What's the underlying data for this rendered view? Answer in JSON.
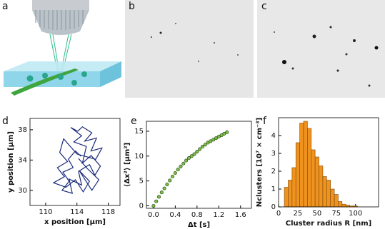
{
  "panel_labels": [
    "a",
    "b",
    "c",
    "d",
    "e",
    "f"
  ],
  "chart_data": [
    {
      "type": "line",
      "xlabel": "x position [μm]",
      "ylabel": "y position [μm]",
      "color": "#1a2a7a",
      "x": [
        114.5,
        113.8,
        112.9,
        113.5,
        112.2,
        113.0,
        112.1,
        113.4,
        113.0,
        114.6,
        114.2,
        115.6,
        116.3,
        117.0,
        115.8,
        114.7,
        115.2,
        113.6,
        114.6,
        113.2,
        114.1,
        114.7,
        115.9,
        115.0,
        116.5,
        115.8,
        117.2,
        116.4,
        114.0,
        112.3,
        111.8,
        112.8,
        111.5,
        112.4,
        111.0,
        112.6,
        113.8,
        114.8,
        115.6,
        114.3,
        115.9,
        116.8,
        115.3,
        114.2
      ],
      "values": [
        34.5,
        35.2,
        34.1,
        33.0,
        32.4,
        31.2,
        30.0,
        29.6,
        31.5,
        30.7,
        32.5,
        33.4,
        32.0,
        33.2,
        34.6,
        33.6,
        35.8,
        36.4,
        37.2,
        38.3,
        37.8,
        38.4,
        37.6,
        36.5,
        36.9,
        35.2,
        35.6,
        34.1,
        34.8,
        36.8,
        35.0,
        33.8,
        33.0,
        31.8,
        31.0,
        30.4,
        31.4,
        29.8,
        31.2,
        32.6,
        30.0,
        31.4,
        32.9,
        34.2
      ],
      "xlim": [
        108,
        119.5
      ],
      "ylim": [
        28,
        39.5
      ],
      "xticks": [
        110,
        114,
        118
      ],
      "yticks": [
        30,
        34,
        38
      ]
    },
    {
      "type": "scatter",
      "xlabel": "Δt [s]",
      "ylabel": "⟨Δx²⟩ [μm²]",
      "color": "#7bc043",
      "x": [
        0,
        0.05,
        0.1,
        0.15,
        0.2,
        0.25,
        0.3,
        0.35,
        0.4,
        0.45,
        0.5,
        0.55,
        0.6,
        0.65,
        0.7,
        0.75,
        0.8,
        0.85,
        0.9,
        0.95,
        1.0,
        1.05,
        1.1,
        1.15,
        1.2,
        1.25,
        1.3,
        1.35
      ],
      "values": [
        0,
        0.9,
        1.8,
        2.7,
        3.5,
        4.3,
        5.1,
        5.9,
        6.6,
        7.3,
        7.9,
        8.5,
        9.1,
        9.6,
        10.0,
        10.4,
        10.9,
        11.4,
        11.9,
        12.3,
        12.7,
        13.0,
        13.3,
        13.6,
        13.9,
        14.2,
        14.5,
        14.8
      ],
      "xlim": [
        -0.13,
        1.8
      ],
      "ylim": [
        -0.5,
        17
      ],
      "xticks": [
        {
          "value": 0,
          "label": "0.0"
        },
        0.4,
        0.8,
        1.2,
        1.6
      ],
      "yticks": [
        0,
        5,
        10,
        15
      ]
    },
    {
      "type": "histogram",
      "xlabel": "Cluster radius R [nm]",
      "ylabel": "Nclusters [10⁷ × cm⁻³]",
      "color": "#f0921e",
      "bins": [
        7.5,
        12.5,
        17.5,
        22.5,
        27.5,
        32.5,
        37.5,
        42.5,
        47.5,
        52.5,
        57.5,
        62.5,
        67.5,
        72.5,
        77.5,
        82.5,
        87.5,
        92.5,
        97.5,
        102.5
      ],
      "values": [
        1.1,
        1.5,
        2.2,
        3.6,
        4.7,
        4.8,
        4.4,
        3.2,
        2.8,
        2.3,
        1.7,
        1.5,
        1.0,
        0.7,
        0.3,
        0.15,
        0.1,
        0.05,
        0.05
      ],
      "xlim": [
        0,
        130
      ],
      "ylim": [
        0,
        5
      ],
      "xticks": [
        0,
        25,
        50,
        75,
        100
      ],
      "yticks": [
        0,
        1,
        2,
        3,
        4
      ]
    }
  ]
}
